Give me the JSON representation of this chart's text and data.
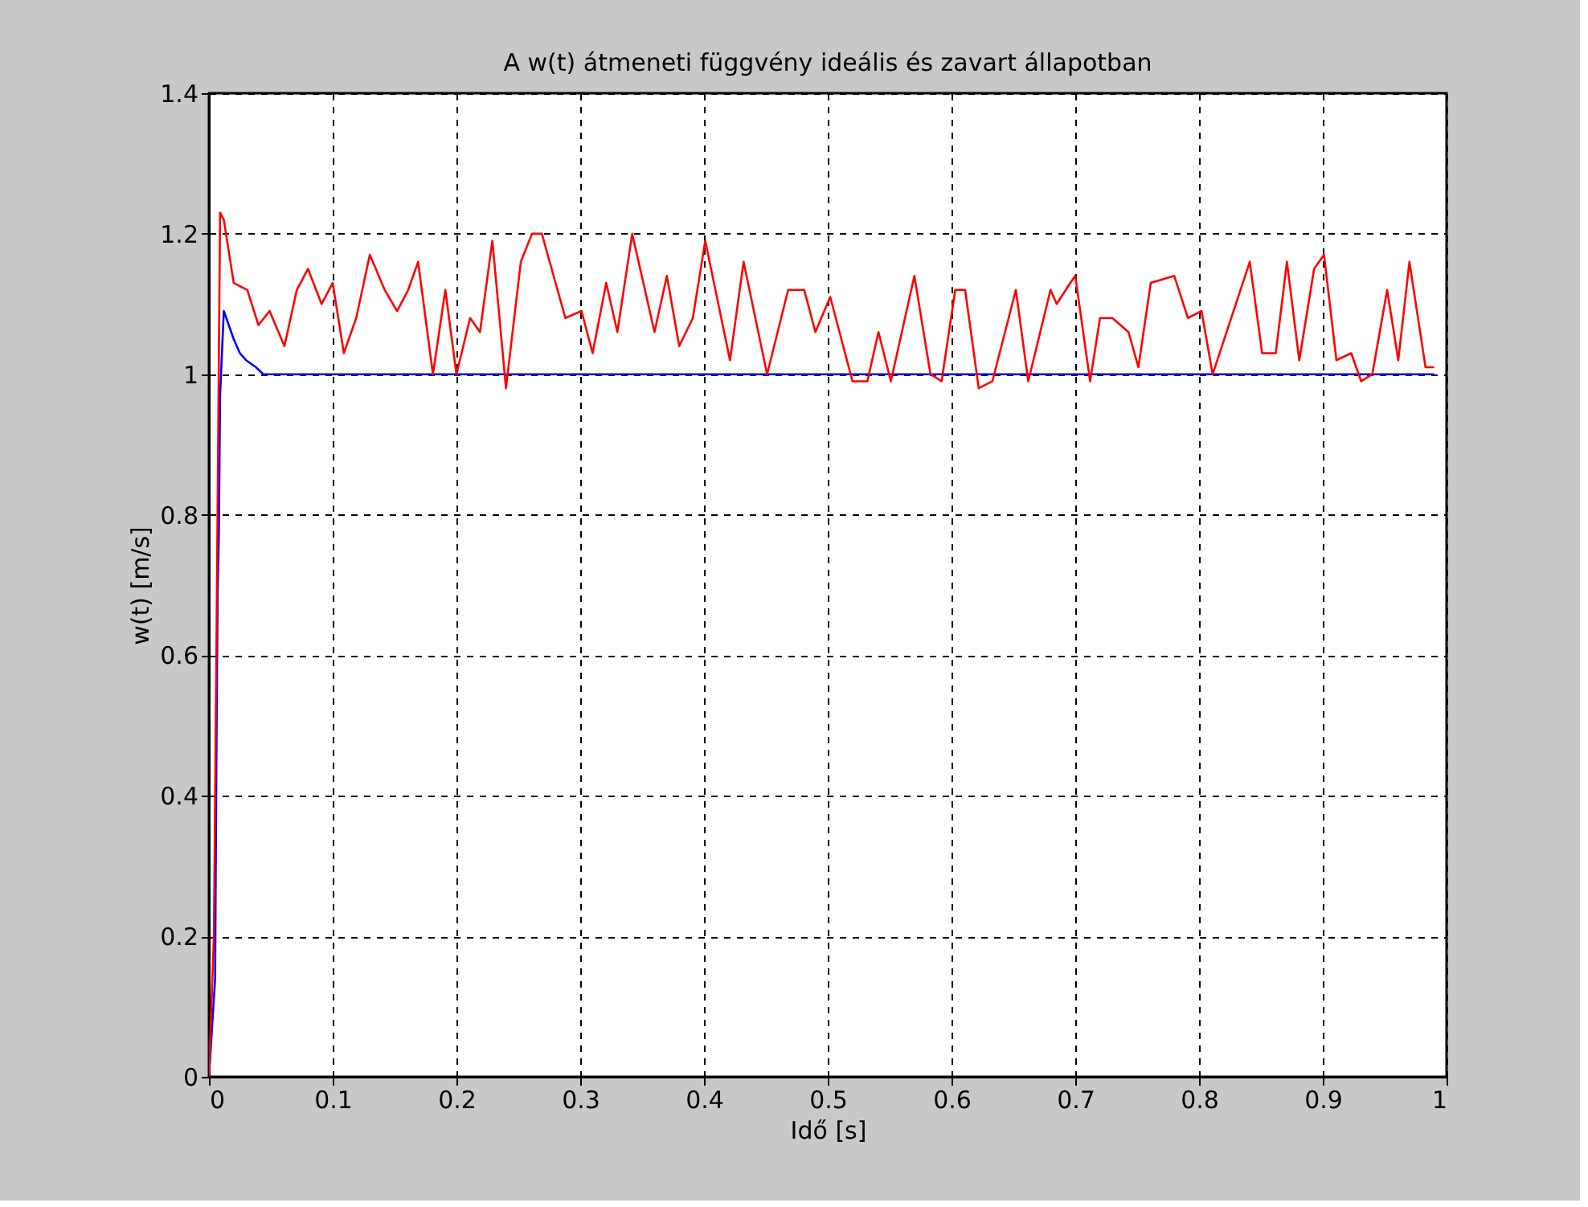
{
  "chart_data": {
    "type": "line",
    "title": "A w(t) átmeneti függvény ideális és zavart állapotban",
    "xlabel": "Idő [s]",
    "ylabel": "w(t) [m/s]",
    "xlim": [
      0,
      1
    ],
    "ylim": [
      0,
      1.4
    ],
    "xticks": [
      0,
      0.1,
      0.2,
      0.3,
      0.4,
      0.5,
      0.6,
      0.7,
      0.8,
      0.9,
      1
    ],
    "yticks": [
      0,
      0.2,
      0.4,
      0.6,
      0.8,
      1,
      1.2,
      1.4
    ],
    "grid": true,
    "line_style": "solid",
    "marker": "none",
    "series": [
      {
        "color": "#0000ff",
        "x": [
          0,
          0.005,
          0.006,
          0.007,
          0.008,
          0.009,
          0.012,
          0.016,
          0.02,
          0.025,
          0.03,
          0.038,
          0.044,
          0.99
        ],
        "values": [
          0,
          0.14,
          0.45,
          0.69,
          0.77,
          0.97,
          1.09,
          1.07,
          1.05,
          1.03,
          1.02,
          1.01,
          1.0,
          1.0
        ]
      },
      {
        "color": "#ff0000",
        "x": [
          0,
          0.004,
          0.006,
          0.009,
          0.012,
          0.02,
          0.031,
          0.04,
          0.049,
          0.061,
          0.071,
          0.08,
          0.091,
          0.1,
          0.109,
          0.119,
          0.13,
          0.142,
          0.152,
          0.161,
          0.169,
          0.181,
          0.191,
          0.2,
          0.211,
          0.219,
          0.229,
          0.24,
          0.252,
          0.261,
          0.269,
          0.288,
          0.301,
          0.31,
          0.321,
          0.33,
          0.342,
          0.36,
          0.37,
          0.38,
          0.391,
          0.401,
          0.421,
          0.432,
          0.451,
          0.468,
          0.481,
          0.49,
          0.502,
          0.52,
          0.532,
          0.541,
          0.551,
          0.57,
          0.583,
          0.592,
          0.603,
          0.611,
          0.622,
          0.633,
          0.652,
          0.662,
          0.68,
          0.685,
          0.696,
          0.7,
          0.712,
          0.72,
          0.73,
          0.743,
          0.751,
          0.761,
          0.78,
          0.791,
          0.802,
          0.811,
          0.841,
          0.851,
          0.862,
          0.871,
          0.881,
          0.893,
          0.901,
          0.911,
          0.923,
          0.931,
          0.94,
          0.952,
          0.961,
          0.97,
          0.983,
          0.99
        ],
        "values": [
          0,
          0.2,
          0.6,
          1.23,
          1.22,
          1.13,
          1.12,
          1.07,
          1.09,
          1.04,
          1.12,
          1.15,
          1.1,
          1.13,
          1.03,
          1.08,
          1.17,
          1.12,
          1.09,
          1.12,
          1.16,
          1.0,
          1.12,
          1.0,
          1.08,
          1.06,
          1.19,
          0.98,
          1.16,
          1.2,
          1.2,
          1.08,
          1.09,
          1.03,
          1.13,
          1.06,
          1.2,
          1.06,
          1.14,
          1.04,
          1.08,
          1.19,
          1.02,
          1.16,
          1.0,
          1.12,
          1.12,
          1.06,
          1.11,
          0.99,
          0.99,
          1.06,
          0.99,
          1.14,
          1.0,
          0.99,
          1.12,
          1.12,
          0.98,
          0.99,
          1.12,
          0.99,
          1.12,
          1.1,
          1.13,
          1.14,
          0.99,
          1.08,
          1.08,
          1.06,
          1.01,
          1.13,
          1.14,
          1.08,
          1.09,
          1.0,
          1.16,
          1.03,
          1.03,
          1.16,
          1.02,
          1.15,
          1.17,
          1.02,
          1.03,
          0.99,
          1.0,
          1.12,
          1.02,
          1.16,
          1.01,
          1.01
        ]
      }
    ]
  }
}
